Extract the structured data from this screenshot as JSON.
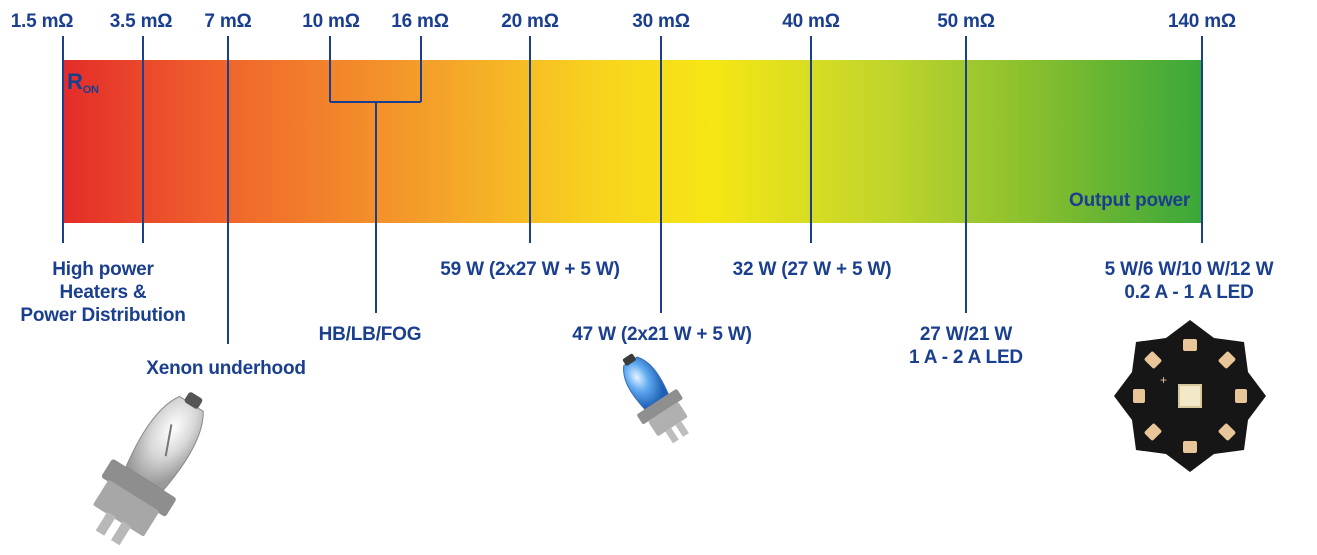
{
  "scale": {
    "title": "R",
    "title_sub": "ON",
    "axis_label": "Output power",
    "gradient_colors": [
      "#e42c2a",
      "#f0642c",
      "#f4a22a",
      "#f8d31e",
      "#f6e614",
      "#bed42c",
      "#7fbc2f",
      "#3aa73a"
    ],
    "tick_color": "#1b3f8f",
    "resistance_ticks": [
      "1.5 mΩ",
      "3.5 mΩ",
      "7 mΩ",
      "10 mΩ",
      "16 mΩ",
      "20 mΩ",
      "30 mΩ",
      "40 mΩ",
      "50 mΩ",
      "140 mΩ"
    ]
  },
  "applications": {
    "high_power": [
      "High power",
      "Heaters &",
      "Power Distribution"
    ],
    "xenon": "Xenon underhood",
    "hb_lb_fog": "HB/LB/FOG",
    "w59": "59 W (2x27 W + 5 W)",
    "w47": "47 W (2x21 W + 5 W)",
    "w32": "32 W (27 W + 5 W)",
    "w27": [
      "27 W/21 W",
      "1 A - 2 A LED"
    ],
    "w5": [
      "5 W/6 W/10 W/12 W",
      "0.2 A - 1 A LED"
    ]
  },
  "images": [
    "halogen-bulb-icon",
    "blue-halogen-bulb-icon",
    "star-led-icon"
  ]
}
